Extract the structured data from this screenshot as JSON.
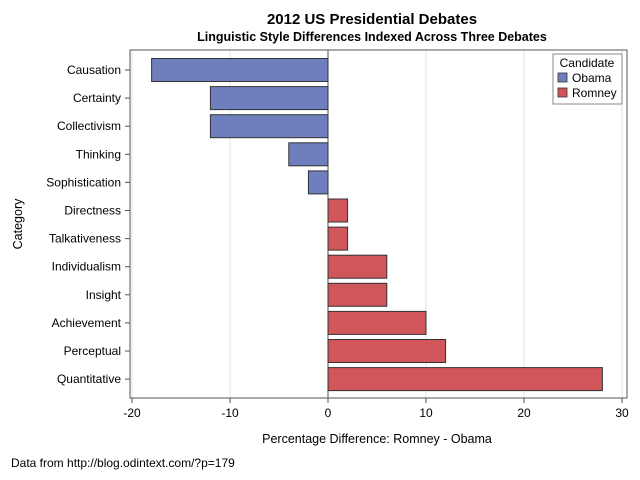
{
  "chart_data": {
    "type": "bar",
    "orientation": "horizontal",
    "title": "2012 US Presidential Debates",
    "subtitle": "Linguistic Style Differences Indexed Across Three Debates",
    "xlabel": "Percentage Difference: Romney - Obama",
    "ylabel": "Category",
    "xlim": [
      -20,
      30
    ],
    "xticks": [
      -20,
      -10,
      0,
      10,
      20,
      30
    ],
    "grid": "vertical",
    "categories": [
      "Causation",
      "Certainty",
      "Collectivism",
      "Thinking",
      "Sophistication",
      "Directness",
      "Talkativeness",
      "Individualism",
      "Insight",
      "Achievement",
      "Perceptual",
      "Quantitative"
    ],
    "values": [
      -18,
      -12,
      -12,
      -4,
      -2,
      2,
      2,
      6,
      6,
      10,
      12,
      28
    ],
    "groups": [
      "Obama",
      "Obama",
      "Obama",
      "Obama",
      "Obama",
      "Romney",
      "Romney",
      "Romney",
      "Romney",
      "Romney",
      "Romney",
      "Romney"
    ],
    "legend": {
      "title": "Candidate",
      "placement": "top-right",
      "entries": [
        {
          "name": "Obama",
          "color": "#6f7fbd"
        },
        {
          "name": "Romney",
          "color": "#d05659"
        }
      ]
    }
  },
  "footnote": "Data from http://blog.odintext.com/?p=179"
}
